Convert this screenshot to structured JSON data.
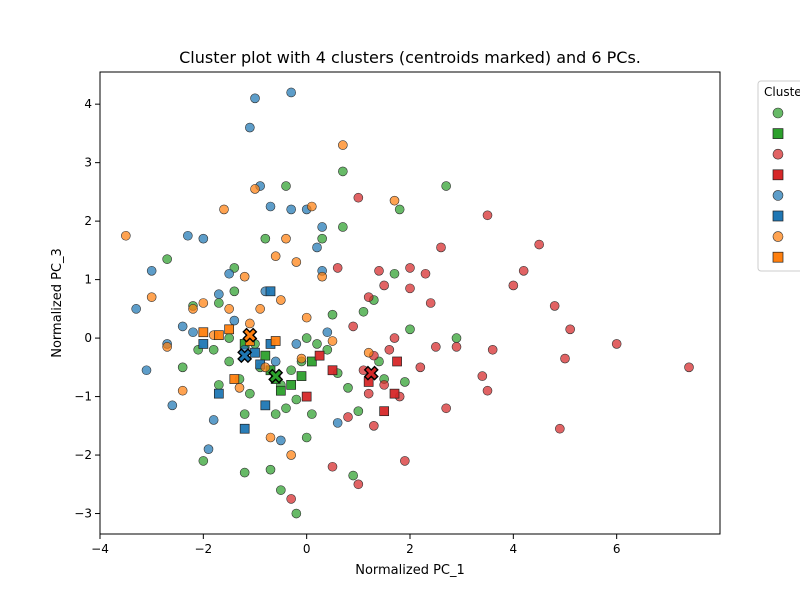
{
  "chart_data": {
    "type": "scatter",
    "title": "Cluster plot with 4 clusters (centroids marked) and 6 PCs.",
    "xlabel": "Normalized PC_1",
    "ylabel": "Normalized PC_3",
    "xlim": [
      -4.0,
      8.0
    ],
    "ylim": [
      -3.35,
      4.55
    ],
    "xticks": [
      -4,
      -2,
      0,
      2,
      4,
      6
    ],
    "yticks": [
      -3,
      -2,
      -1,
      0,
      1,
      2,
      3,
      4
    ],
    "grid": false,
    "legend": {
      "title": "Cluste",
      "placement": "outside-top-right"
    },
    "series": [
      {
        "color": "#2ca02c",
        "marker": "circle",
        "points": [
          [
            -2.7,
            1.35
          ],
          [
            -2.4,
            -0.5
          ],
          [
            -2.2,
            0.55
          ],
          [
            -2.1,
            -0.2
          ],
          [
            -2.0,
            -2.1
          ],
          [
            -1.8,
            -0.2
          ],
          [
            -1.7,
            0.6
          ],
          [
            -1.7,
            -0.8
          ],
          [
            -1.5,
            -0.4
          ],
          [
            -1.5,
            0.0
          ],
          [
            -1.4,
            1.2
          ],
          [
            -1.4,
            0.8
          ],
          [
            -1.3,
            -0.7
          ],
          [
            -1.2,
            -2.3
          ],
          [
            -1.2,
            -1.3
          ],
          [
            -1.1,
            -0.95
          ],
          [
            -1.0,
            -0.1
          ],
          [
            -0.9,
            -0.5
          ],
          [
            -0.8,
            1.7
          ],
          [
            -0.7,
            -2.25
          ],
          [
            -0.6,
            -1.3
          ],
          [
            -0.5,
            -0.8
          ],
          [
            -0.5,
            -2.6
          ],
          [
            -0.4,
            2.6
          ],
          [
            -0.4,
            -1.2
          ],
          [
            -0.3,
            -0.55
          ],
          [
            -0.2,
            -1.05
          ],
          [
            -0.2,
            -3.0
          ],
          [
            -0.1,
            -0.4
          ],
          [
            0.0,
            0.0
          ],
          [
            0.0,
            -1.7
          ],
          [
            0.1,
            -1.3
          ],
          [
            0.2,
            -0.1
          ],
          [
            0.3,
            1.7
          ],
          [
            0.4,
            -0.2
          ],
          [
            0.5,
            0.4
          ],
          [
            0.6,
            -0.6
          ],
          [
            0.7,
            2.85
          ],
          [
            0.7,
            1.9
          ],
          [
            0.8,
            -0.85
          ],
          [
            0.9,
            -2.35
          ],
          [
            1.0,
            -1.25
          ],
          [
            1.1,
            0.45
          ],
          [
            1.3,
            0.65
          ],
          [
            1.4,
            -0.4
          ],
          [
            1.5,
            -0.7
          ],
          [
            1.8,
            2.2
          ],
          [
            1.7,
            1.1
          ],
          [
            1.9,
            -0.75
          ],
          [
            2.0,
            0.15
          ],
          [
            2.7,
            2.6
          ],
          [
            2.9,
            0.0
          ]
        ]
      },
      {
        "color": "#2ca02c",
        "marker": "square",
        "points": [
          [
            -1.2,
            -0.1
          ],
          [
            -0.8,
            -0.3
          ],
          [
            -0.7,
            -0.55
          ],
          [
            -0.6,
            -0.7
          ],
          [
            -0.5,
            -0.9
          ],
          [
            -0.3,
            -0.8
          ],
          [
            -0.1,
            -0.65
          ],
          [
            0.1,
            -0.4
          ]
        ]
      },
      {
        "color": "#d62728",
        "marker": "circle",
        "points": [
          [
            -0.3,
            -2.75
          ],
          [
            0.5,
            -2.2
          ],
          [
            0.6,
            1.2
          ],
          [
            0.8,
            -1.35
          ],
          [
            0.9,
            0.2
          ],
          [
            1.0,
            -2.5
          ],
          [
            1.0,
            2.4
          ],
          [
            1.1,
            -0.55
          ],
          [
            1.2,
            -0.95
          ],
          [
            1.2,
            0.7
          ],
          [
            1.3,
            -1.5
          ],
          [
            1.3,
            -0.3
          ],
          [
            1.4,
            1.15
          ],
          [
            1.5,
            0.9
          ],
          [
            1.5,
            -0.8
          ],
          [
            1.6,
            -0.2
          ],
          [
            1.7,
            0.0
          ],
          [
            1.8,
            -1.0
          ],
          [
            1.9,
            -2.1
          ],
          [
            2.0,
            1.2
          ],
          [
            2.0,
            0.85
          ],
          [
            2.2,
            -0.5
          ],
          [
            2.3,
            1.1
          ],
          [
            2.4,
            0.6
          ],
          [
            2.5,
            -0.15
          ],
          [
            2.6,
            1.55
          ],
          [
            2.7,
            -1.2
          ],
          [
            2.9,
            -0.15
          ],
          [
            3.4,
            -0.65
          ],
          [
            3.5,
            2.1
          ],
          [
            3.5,
            -0.9
          ],
          [
            3.6,
            -0.2
          ],
          [
            4.0,
            0.9
          ],
          [
            4.2,
            1.15
          ],
          [
            4.5,
            1.6
          ],
          [
            4.8,
            0.55
          ],
          [
            4.9,
            -1.55
          ],
          [
            5.0,
            -0.35
          ],
          [
            5.1,
            0.15
          ],
          [
            6.0,
            -0.1
          ],
          [
            7.4,
            -0.5
          ]
        ]
      },
      {
        "color": "#d62728",
        "marker": "square",
        "points": [
          [
            0.0,
            -1.0
          ],
          [
            0.25,
            -0.3
          ],
          [
            0.5,
            -0.55
          ],
          [
            1.2,
            -0.75
          ],
          [
            1.5,
            -1.25
          ],
          [
            1.7,
            -0.95
          ],
          [
            1.75,
            -0.4
          ]
        ]
      },
      {
        "color": "#1f77b4",
        "marker": "circle",
        "points": [
          [
            -3.3,
            0.5
          ],
          [
            -3.1,
            -0.55
          ],
          [
            -3.0,
            1.15
          ],
          [
            -2.7,
            -0.1
          ],
          [
            -2.6,
            -1.15
          ],
          [
            -2.4,
            0.2
          ],
          [
            -2.3,
            1.75
          ],
          [
            -2.2,
            0.1
          ],
          [
            -2.0,
            1.7
          ],
          [
            -1.9,
            -1.9
          ],
          [
            -1.8,
            -1.4
          ],
          [
            -1.7,
            0.75
          ],
          [
            -1.5,
            1.1
          ],
          [
            -1.4,
            0.3
          ],
          [
            -1.2,
            -0.2
          ],
          [
            -1.1,
            3.6
          ],
          [
            -1.0,
            4.1
          ],
          [
            -0.9,
            2.6
          ],
          [
            -0.8,
            0.8
          ],
          [
            -0.7,
            2.25
          ],
          [
            -0.6,
            -0.4
          ],
          [
            -0.5,
            -1.75
          ],
          [
            -0.3,
            4.2
          ],
          [
            -0.3,
            2.2
          ],
          [
            -0.2,
            -0.1
          ],
          [
            0.0,
            2.2
          ],
          [
            0.2,
            1.55
          ],
          [
            0.3,
            1.15
          ],
          [
            0.3,
            1.9
          ],
          [
            0.4,
            0.1
          ],
          [
            0.6,
            -1.45
          ]
        ]
      },
      {
        "color": "#1f77b4",
        "marker": "square",
        "points": [
          [
            -2.0,
            -0.1
          ],
          [
            -1.7,
            -0.95
          ],
          [
            -1.2,
            -1.55
          ],
          [
            -1.0,
            -0.25
          ],
          [
            -0.9,
            -0.45
          ],
          [
            -0.8,
            -1.15
          ],
          [
            -0.7,
            0.8
          ],
          [
            -0.7,
            -0.1
          ]
        ]
      },
      {
        "color": "#ff7f0e",
        "marker": "circle",
        "points": [
          [
            -3.5,
            1.75
          ],
          [
            -3.0,
            0.7
          ],
          [
            -2.7,
            -0.15
          ],
          [
            -2.4,
            -0.9
          ],
          [
            -2.2,
            0.5
          ],
          [
            -2.0,
            0.6
          ],
          [
            -1.8,
            0.05
          ],
          [
            -1.6,
            2.2
          ],
          [
            -1.5,
            0.5
          ],
          [
            -1.3,
            -0.85
          ],
          [
            -1.2,
            1.05
          ],
          [
            -1.1,
            0.25
          ],
          [
            -1.0,
            2.55
          ],
          [
            -0.9,
            0.5
          ],
          [
            -0.8,
            -0.5
          ],
          [
            -0.7,
            -1.7
          ],
          [
            -0.6,
            1.4
          ],
          [
            -0.5,
            0.65
          ],
          [
            -0.4,
            1.7
          ],
          [
            -0.3,
            -2.0
          ],
          [
            -0.2,
            1.3
          ],
          [
            -0.1,
            -0.35
          ],
          [
            0.0,
            0.35
          ],
          [
            0.1,
            2.25
          ],
          [
            0.3,
            1.05
          ],
          [
            0.5,
            -0.05
          ],
          [
            0.7,
            3.3
          ],
          [
            1.2,
            -0.25
          ],
          [
            1.7,
            2.35
          ]
        ]
      },
      {
        "color": "#ff7f0e",
        "marker": "square",
        "points": [
          [
            -2.0,
            0.1
          ],
          [
            -1.7,
            0.05
          ],
          [
            -1.5,
            0.15
          ],
          [
            -1.4,
            -0.7
          ],
          [
            -1.1,
            -0.05
          ],
          [
            -0.6,
            -0.05
          ]
        ]
      }
    ],
    "centroids": [
      {
        "color": "#2ca02c",
        "x": -0.6,
        "y": -0.65
      },
      {
        "color": "#d62728",
        "x": 1.25,
        "y": -0.6
      },
      {
        "color": "#1f77b4",
        "x": -1.2,
        "y": -0.3
      },
      {
        "color": "#ff7f0e",
        "x": -1.1,
        "y": 0.05
      }
    ]
  }
}
